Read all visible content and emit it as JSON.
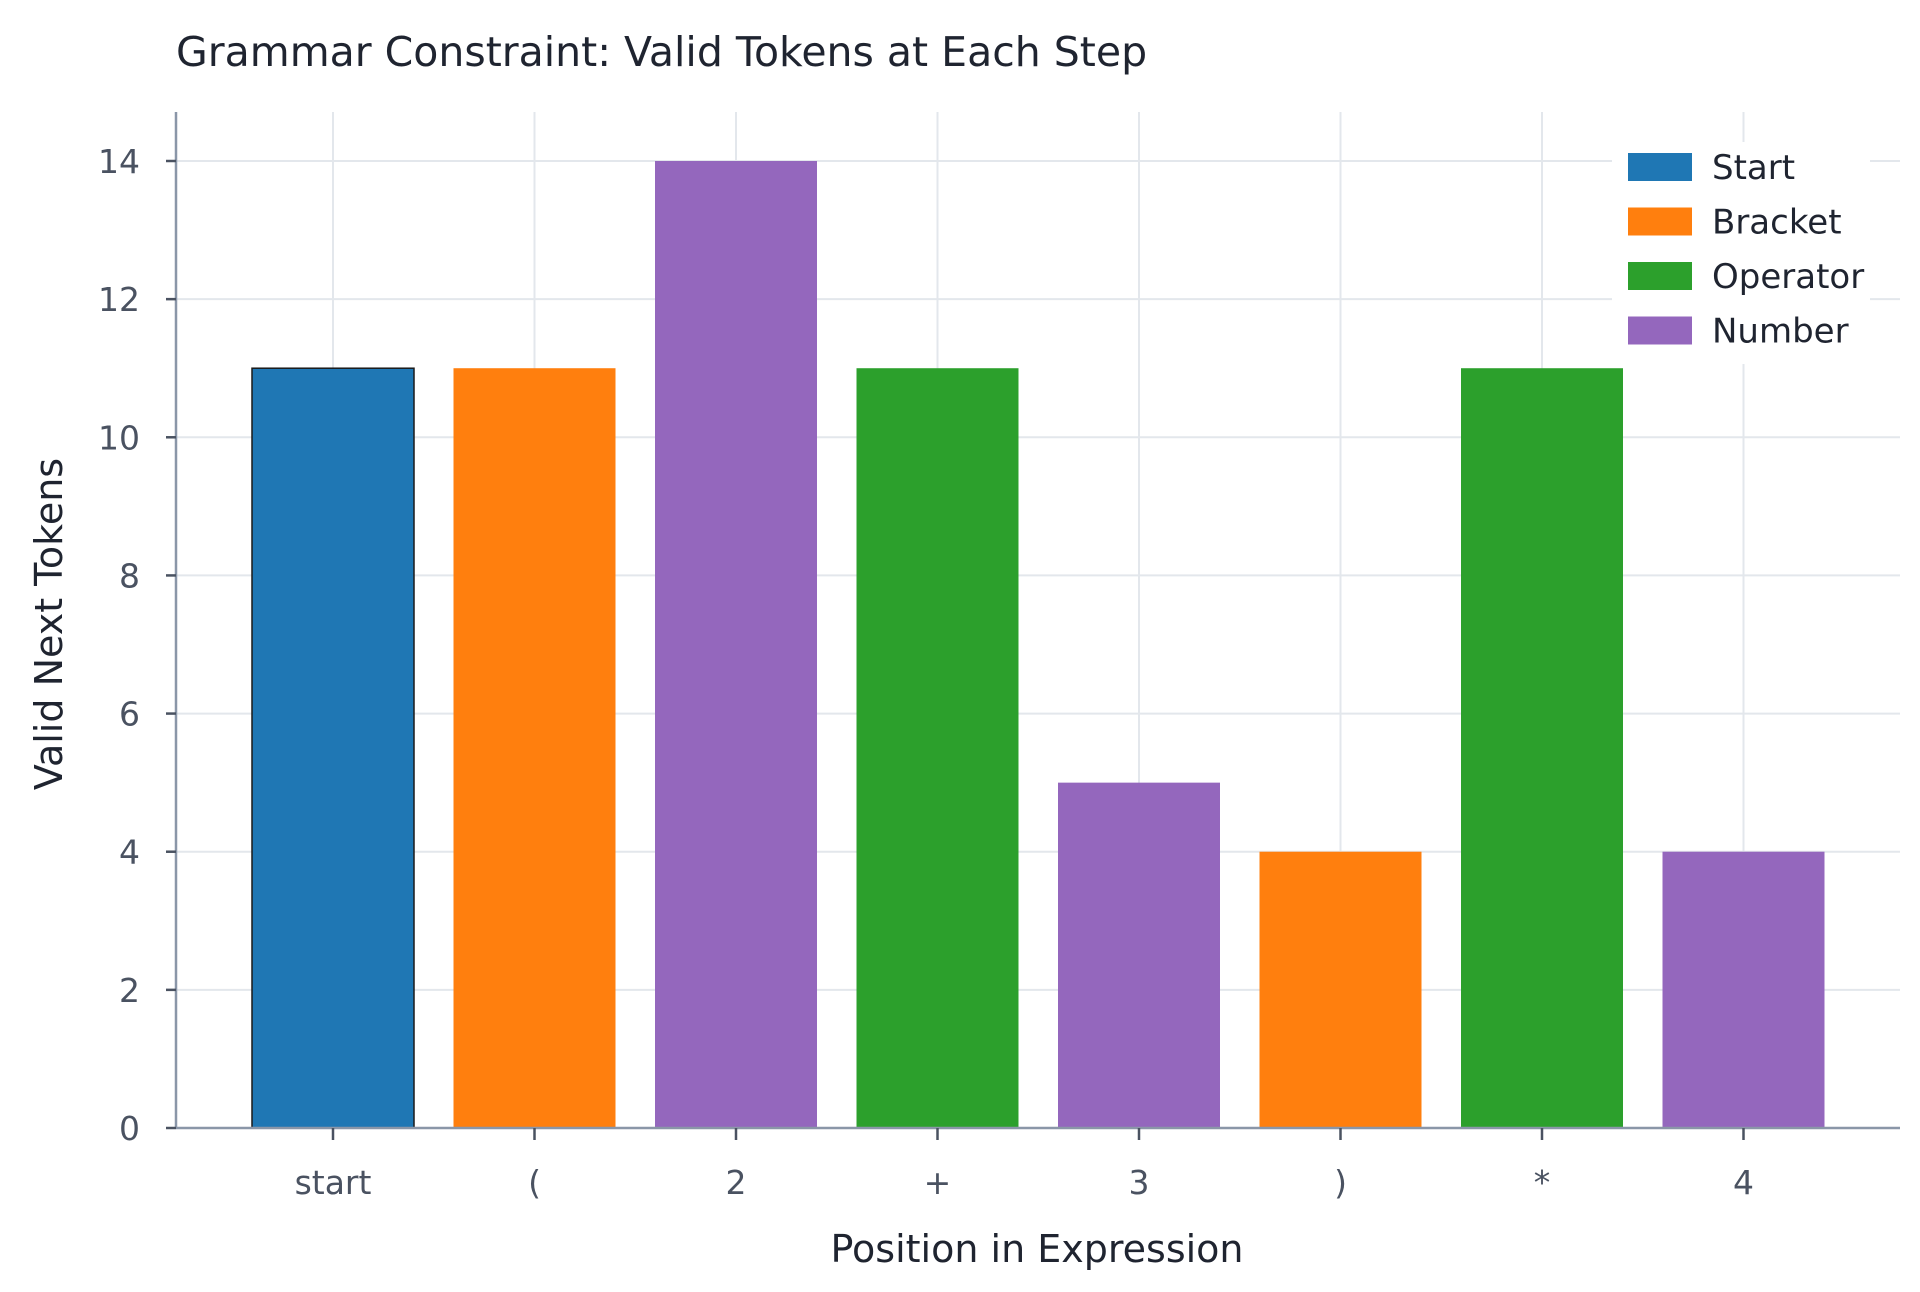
{
  "chart_data": {
    "type": "bar",
    "title": "Grammar Constraint: Valid Tokens at Each Step",
    "xlabel": "Position in Expression",
    "ylabel": "Valid Next Tokens",
    "categories": [
      "start",
      "(",
      "2",
      "+",
      "3",
      ")",
      "*",
      "4"
    ],
    "values": [
      11,
      11,
      14,
      11,
      5,
      4,
      11,
      4
    ],
    "bar_types": [
      "Start",
      "Bracket",
      "Number",
      "Operator",
      "Number",
      "Bracket",
      "Operator",
      "Number"
    ],
    "yticks": [
      0,
      2,
      4,
      6,
      8,
      10,
      12,
      14
    ],
    "ylim": [
      0,
      14.7
    ],
    "grid": true,
    "legend_position": "top-right",
    "legend": [
      {
        "name": "Start",
        "color": "#1f77b4"
      },
      {
        "name": "Bracket",
        "color": "#ff7f0e"
      },
      {
        "name": "Operator",
        "color": "#2ca02c"
      },
      {
        "name": "Number",
        "color": "#9467bd"
      }
    ]
  }
}
